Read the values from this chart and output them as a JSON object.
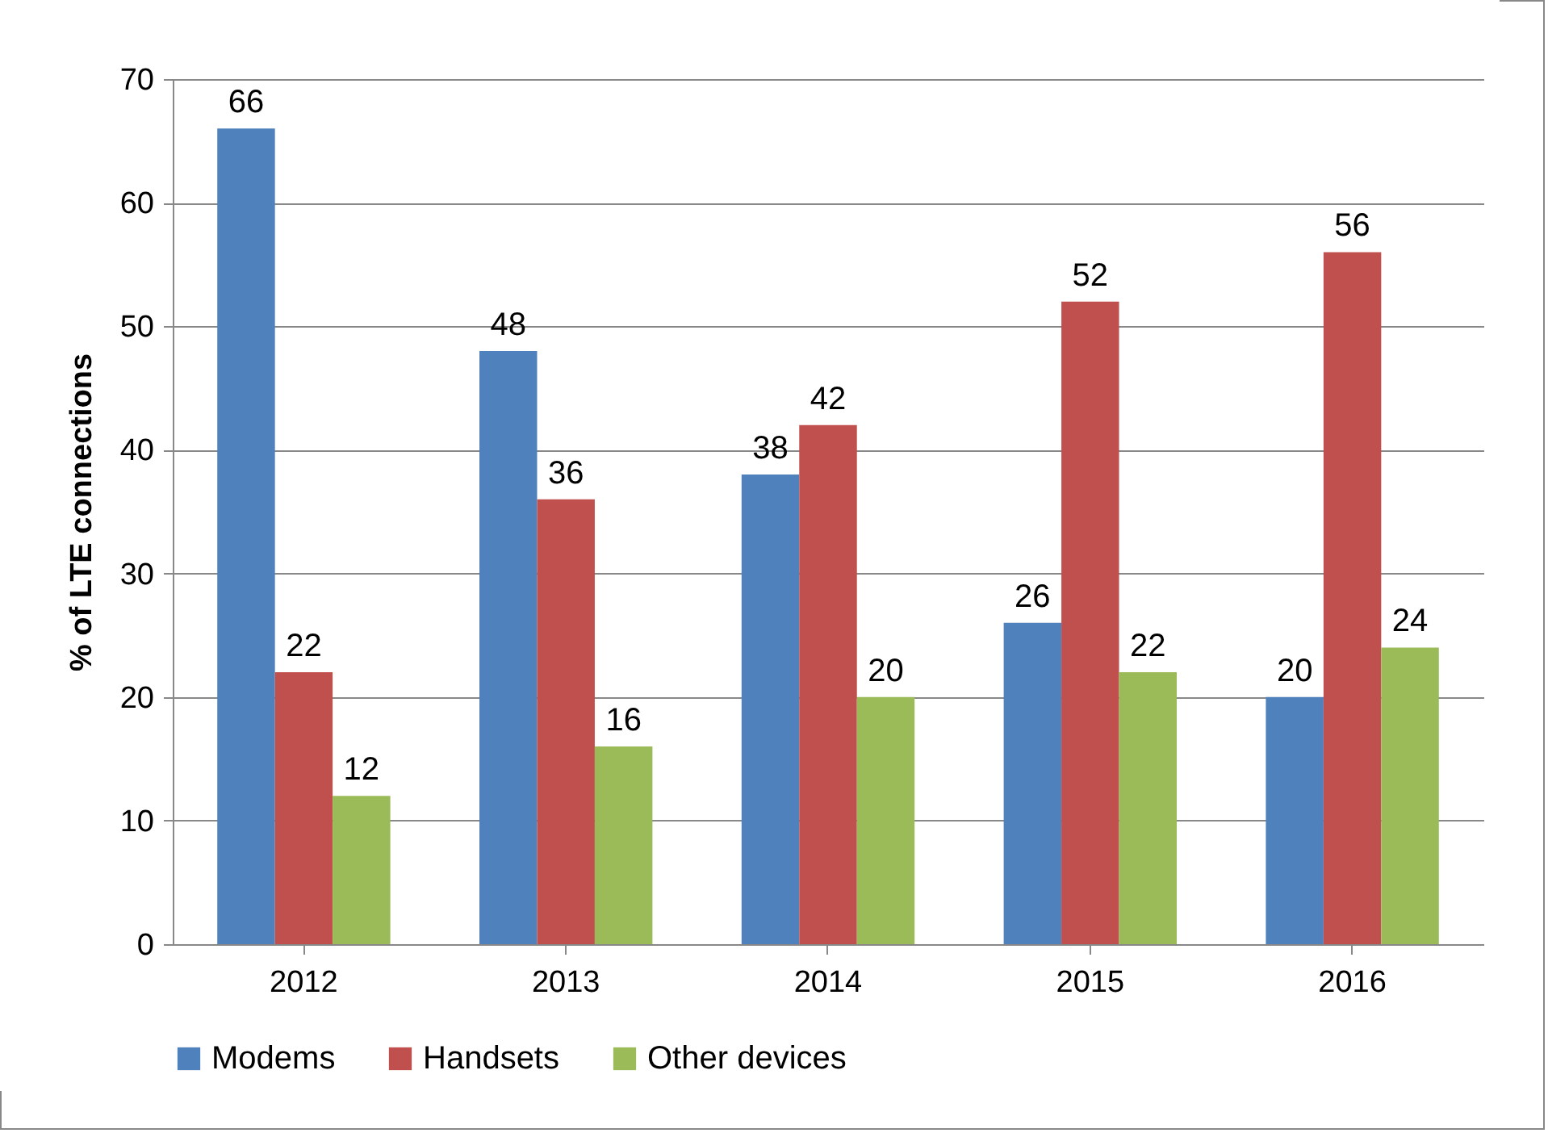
{
  "chart_data": {
    "type": "bar",
    "ylabel": "% of LTE connections",
    "categories": [
      "2012",
      "2013",
      "2014",
      "2015",
      "2016"
    ],
    "series": [
      {
        "name": "Modems",
        "color": "#4f81bd",
        "values": [
          66,
          48,
          38,
          26,
          20
        ]
      },
      {
        "name": "Handsets",
        "color": "#c0504d",
        "values": [
          22,
          36,
          42,
          52,
          56
        ]
      },
      {
        "name": "Other devices",
        "color": "#9bbb59",
        "values": [
          12,
          16,
          20,
          22,
          24
        ]
      }
    ],
    "ylim": [
      0,
      70
    ],
    "yticks": [
      0,
      10,
      20,
      30,
      40,
      50,
      60,
      70
    ],
    "grid": "y",
    "legend": "bottom",
    "data_labels": true
  }
}
